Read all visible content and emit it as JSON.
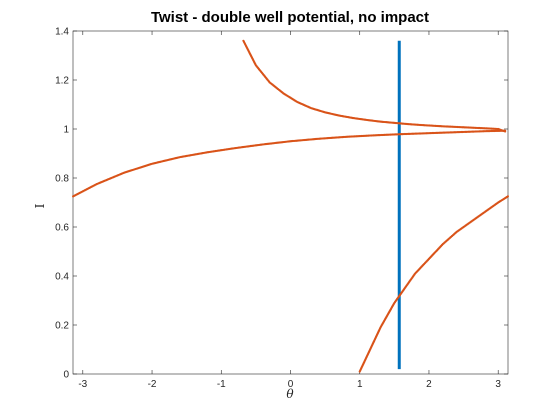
{
  "chart_data": {
    "type": "scatter",
    "title": "Twist - double well potential, no impact",
    "xlabel": "θ",
    "ylabel": "I",
    "xlim": [
      -3.1416,
      3.1416
    ],
    "ylim": [
      0,
      1.4
    ],
    "x_ticks": [
      -3,
      -2,
      -1,
      0,
      1,
      2,
      3
    ],
    "y_ticks": [
      0,
      0.2,
      0.4,
      0.6,
      0.8,
      1,
      1.2,
      1.4
    ],
    "y_tick_labels": [
      "0",
      "0.2",
      "0.4",
      "0.6",
      "0.8",
      "1",
      "1.2",
      "1.4"
    ],
    "grid": false,
    "colors": {
      "curve": "#D95319",
      "line": "#0072BD",
      "axes": "#262626"
    },
    "series": [
      {
        "kind": "vertical-line",
        "x": [
          1.5708,
          1.5708
        ],
        "y": [
          0.02,
          1.36
        ]
      },
      {
        "kind": "curve",
        "x": [
          -3.14,
          -2.8,
          -2.4,
          -2.0,
          -1.6,
          -1.2,
          -0.8,
          -0.4,
          0.0,
          0.4,
          0.8,
          1.2,
          1.6,
          2.0,
          2.4,
          2.8,
          3.1
        ],
        "y": [
          0.725,
          0.775,
          0.822,
          0.858,
          0.885,
          0.905,
          0.922,
          0.937,
          0.95,
          0.96,
          0.968,
          0.974,
          0.979,
          0.983,
          0.987,
          0.991,
          0.993
        ]
      },
      {
        "kind": "curve",
        "x": [
          -0.68,
          -0.5,
          -0.3,
          -0.1,
          0.1,
          0.3,
          0.5,
          0.7,
          0.9,
          1.1,
          1.3,
          1.5,
          1.7,
          1.9,
          2.2,
          2.5,
          2.8,
          3.0,
          3.1
        ],
        "y": [
          1.36,
          1.26,
          1.19,
          1.145,
          1.11,
          1.085,
          1.068,
          1.055,
          1.045,
          1.037,
          1.03,
          1.025,
          1.02,
          1.016,
          1.011,
          1.007,
          1.003,
          1.0,
          0.99
        ]
      },
      {
        "kind": "curve",
        "x": [
          1.0,
          1.1,
          1.2,
          1.3,
          1.4,
          1.5,
          1.6,
          1.8,
          2.0,
          2.2,
          2.4,
          2.6,
          2.8,
          3.0,
          3.14
        ],
        "y": [
          0.01,
          0.07,
          0.13,
          0.19,
          0.24,
          0.29,
          0.33,
          0.41,
          0.47,
          0.53,
          0.58,
          0.62,
          0.66,
          0.7,
          0.725
        ]
      }
    ]
  }
}
